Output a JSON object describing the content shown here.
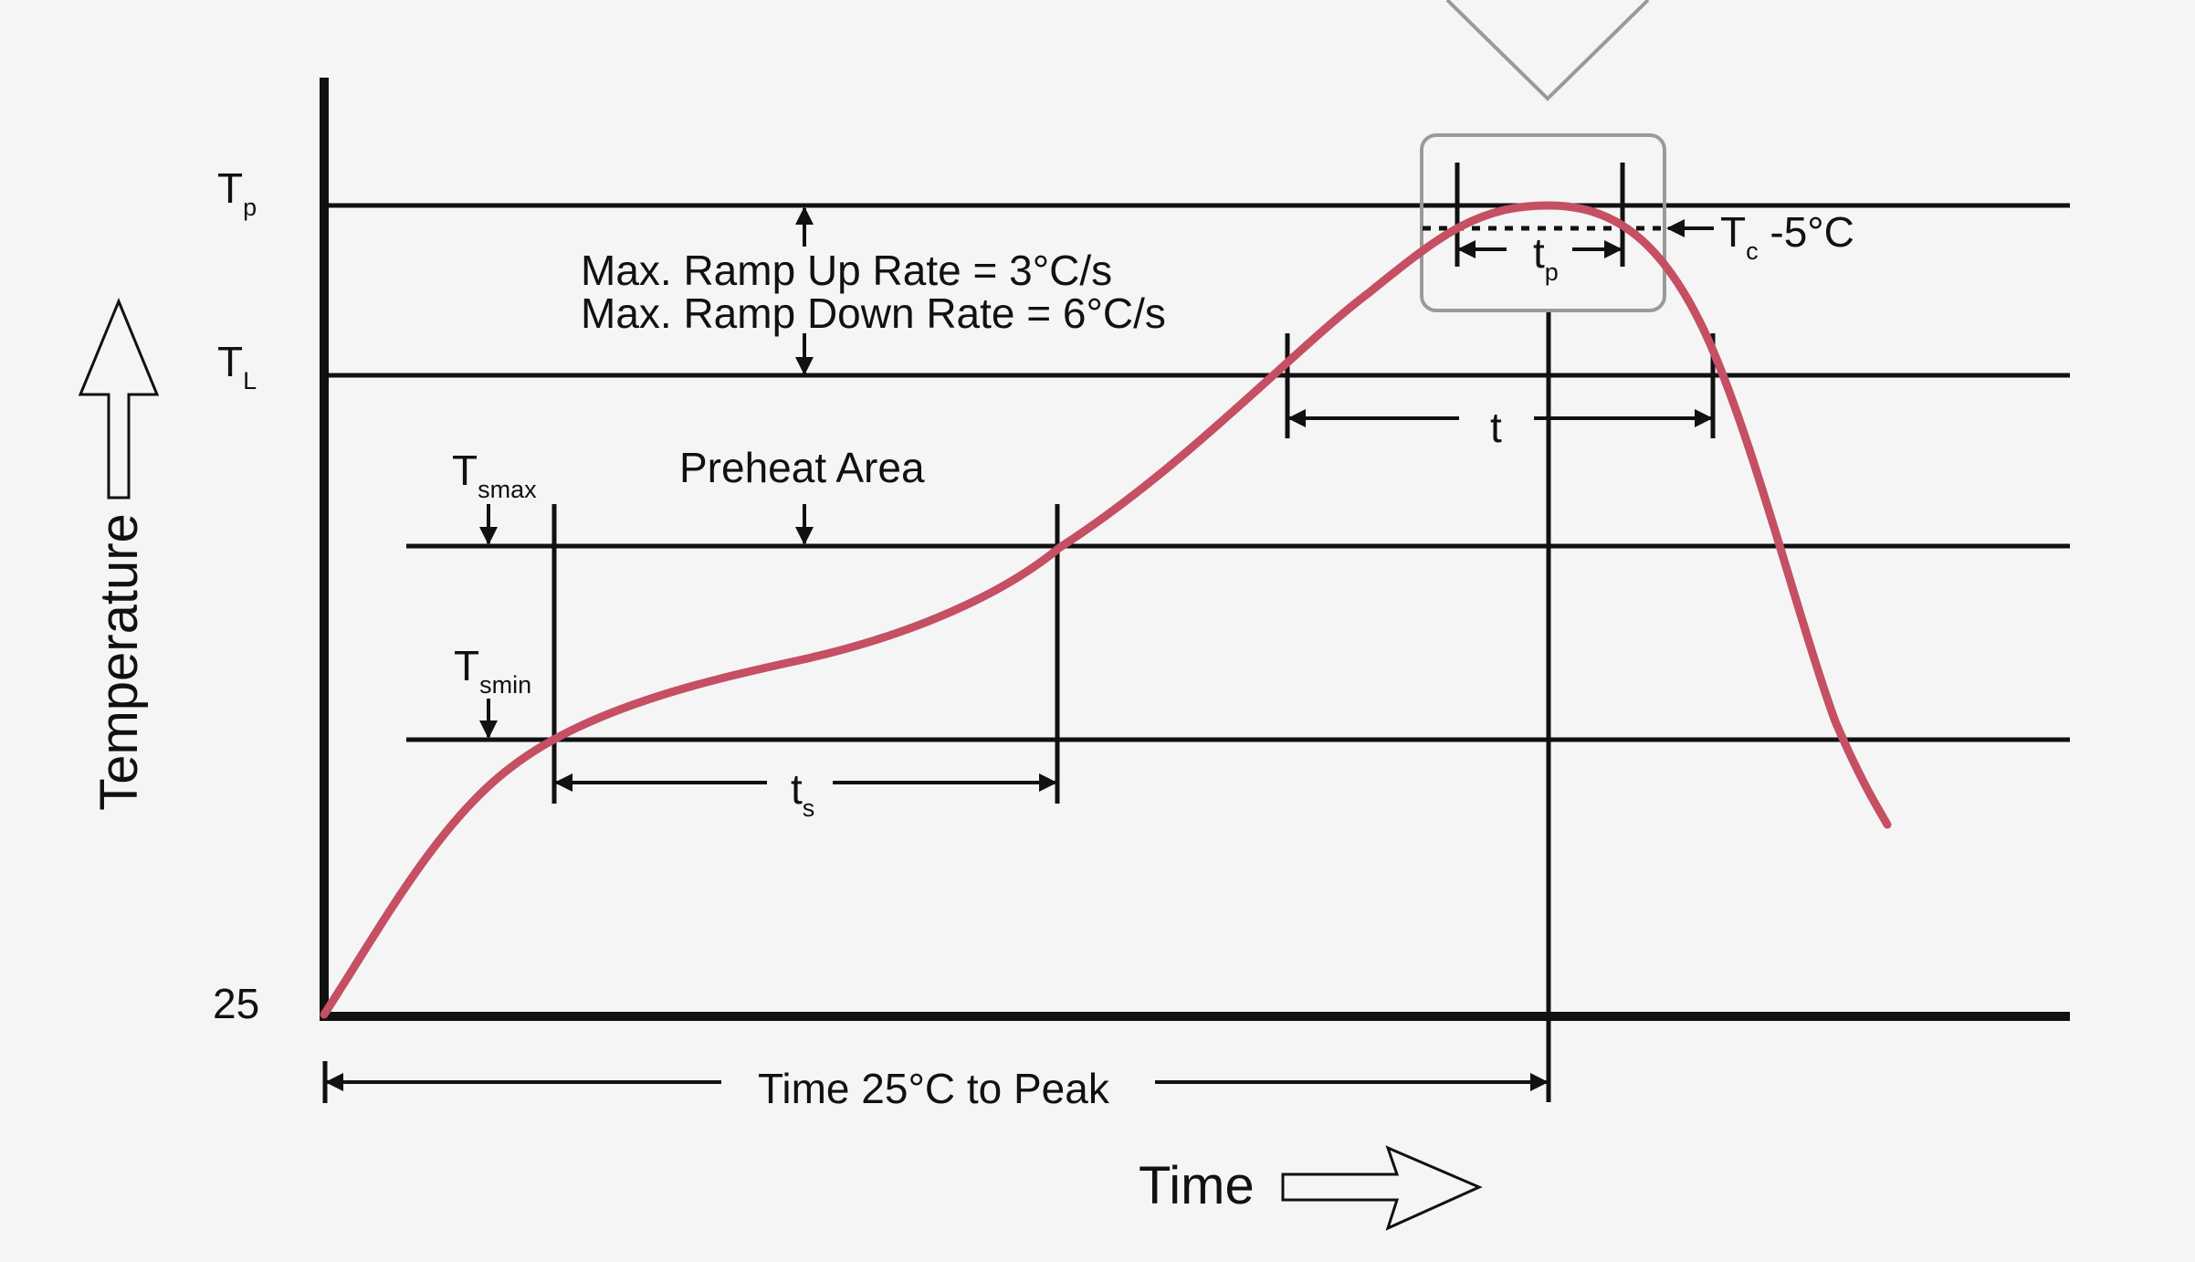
{
  "diagram": {
    "y_axis": {
      "title": "Temperature",
      "labels": {
        "tp_main": "T",
        "tp_sub": "p",
        "tl_main": "T",
        "tl_sub": "L",
        "tsmax_main": "T",
        "tsmax_sub": "smax",
        "tsmin_main": "T",
        "tsmin_sub": "smin",
        "base": "25"
      }
    },
    "x_axis": {
      "title": "Time"
    },
    "annotations": {
      "ramp_up": "Max. Ramp Up Rate = 3°C/s",
      "ramp_down": "Max. Ramp Down Rate = 6°C/s",
      "preheat": "Preheat Area",
      "tc_main": "T",
      "tc_sub": "c",
      "tc_rest": " -5°C",
      "tp_main": "t",
      "tp_sub": "p",
      "t": "t",
      "ts_main": "t",
      "ts_sub": "s",
      "time_to_peak": "Time 25°C to Peak"
    },
    "colors": {
      "profile_curve": "#c54f63",
      "lines": "#111111",
      "highlight_box": "#9a9a9a",
      "background": "#f5f5f5"
    }
  }
}
